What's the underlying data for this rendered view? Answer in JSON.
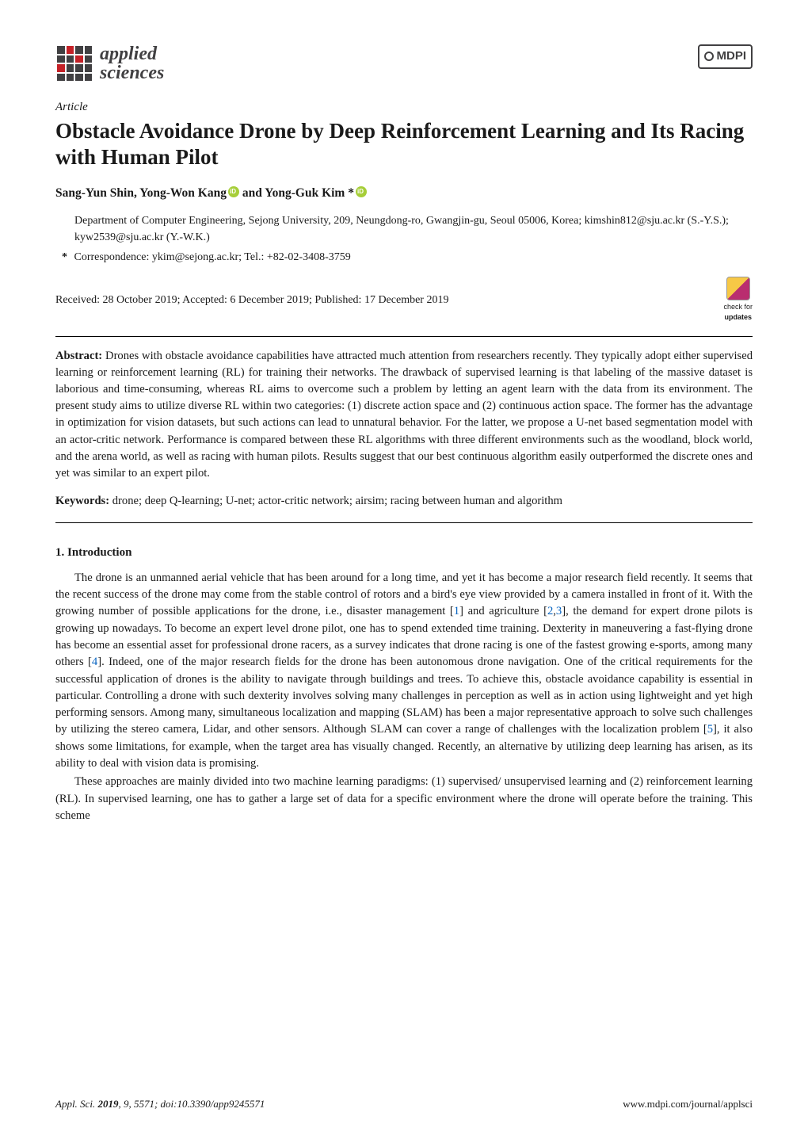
{
  "journal_logo": {
    "line1": "applied",
    "line2": "sciences"
  },
  "publisher_badge": "MDPI",
  "article_type": "Article",
  "title": "Obstacle Avoidance Drone by Deep Reinforcement Learning and Its Racing with Human Pilot",
  "authors_html": "Sang-Yun Shin, Yong-Won Kang{orcid} and Yong-Guk Kim *{orcid}",
  "author1": "Sang-Yun Shin, Yong-Won Kang",
  "author2": " and Yong-Guk Kim *",
  "affiliation": "Department of Computer Engineering, Sejong University, 209, Neungdong-ro, Gwangjin-gu, Seoul 05006, Korea; kimshin812@sju.ac.kr (S.-Y.S.); kyw2539@sju.ac.kr (Y.-W.K.)",
  "correspondence": "Correspondence: ykim@sejong.ac.kr; Tel.: +82-02-3408-3759",
  "dates": "Received: 28 October 2019; Accepted: 6 December 2019; Published: 17 December 2019",
  "check_updates": {
    "line1": "check for",
    "line2": "updates"
  },
  "abstract_label": "Abstract:",
  "abstract_text": " Drones with obstacle avoidance capabilities have attracted much attention from researchers recently. They typically adopt either supervised learning or reinforcement learning (RL) for training their networks. The drawback of supervised learning is that labeling of the massive dataset is laborious and time-consuming, whereas RL aims to overcome such a problem by letting an agent learn with the data from its environment. The present study aims to utilize diverse RL within two categories: (1) discrete action space and (2) continuous action space. The former has the advantage in optimization for vision datasets, but such actions can lead to unnatural behavior. For the latter, we propose a U-net based segmentation model with an actor-critic network. Performance is compared between these RL algorithms with three different environments such as the woodland, block world, and the arena world, as well as racing with human pilots. Results suggest that our best continuous algorithm easily outperformed the discrete ones and yet was similar to an expert pilot.",
  "keywords_label": "Keywords:",
  "keywords_text": " drone; deep Q-learning; U-net; actor-critic network; airsim; racing between human and algorithm",
  "section1_heading": "1. Introduction",
  "body_p1_a": "The drone is an unmanned aerial vehicle that has been around for a long time, and yet it has become a major research field recently. It seems that the recent success of the drone may come from the stable control of rotors and a bird's eye view provided by a camera installed in front of it. With the growing number of possible applications for the drone, i.e., disaster management [",
  "cite1": "1",
  "body_p1_b": "] and agriculture [",
  "cite2": "2",
  "cite_sep23": ",",
  "cite3": "3",
  "body_p1_c": "], the demand for expert drone pilots is growing up nowadays. To become an expert level drone pilot, one has to spend extended time training. Dexterity in maneuvering a fast-flying drone has become an essential asset for professional drone racers, as a survey indicates that drone racing is one of the fastest growing e-sports, among many others [",
  "cite4": "4",
  "body_p1_d": "]. Indeed, one of the major research fields for the drone has been autonomous drone navigation. One of the critical requirements for the successful application of drones is the ability to navigate through buildings and trees. To achieve this, obstacle avoidance capability is essential in particular. Controlling a drone with such dexterity involves solving many challenges in perception as well as in action using lightweight and yet high performing sensors. Among many, simultaneous localization and mapping (SLAM) has been a major representative approach to solve such challenges by utilizing the stereo camera, Lidar, and other sensors. Although SLAM can cover a range of challenges with the localization problem [",
  "cite5": "5",
  "body_p1_e": "], it also shows some limitations, for example, when the target area has visually changed. Recently, an alternative by utilizing deep learning has arisen, as its ability to deal with vision data is promising.",
  "body_p2": "These approaches are mainly divided into two machine learning paradigms: (1) supervised/ unsupervised learning and (2) reinforcement learning (RL). In supervised learning, one has to gather a large set of data for a specific environment where the drone will operate before the training. This scheme",
  "footer_left": "Appl. Sci. 2019, 9, 5571; doi:10.3390/app9245571",
  "footer_right": "www.mdpi.com/journal/applsci",
  "colors": {
    "text": "#1a1a1a",
    "link": "#0563c1",
    "logo_dark": "#414042",
    "logo_red": "#c42127",
    "orcid": "#a6ce39",
    "crossmark_a": "#f7c846",
    "crossmark_b": "#b92d6f",
    "background": "#ffffff"
  },
  "fonts": {
    "body_family": "Palatino",
    "title_size_pt": 20,
    "body_size_pt": 11,
    "abstract_size_pt": 11
  }
}
